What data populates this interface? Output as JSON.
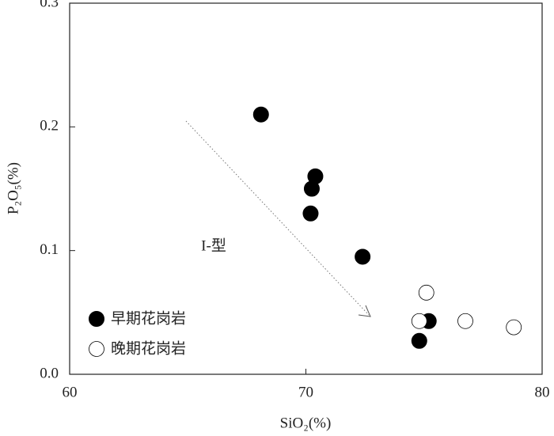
{
  "chart_data": {
    "type": "scatter",
    "x_label": "SiO₂(%)",
    "y_label": "P₂O₅(%)",
    "annotation": "I-型",
    "xlim": [
      60,
      80
    ],
    "xticks": [
      60,
      70,
      80
    ],
    "ylim": [
      0,
      0.3
    ],
    "yticks": [
      {
        "value": 0,
        "label": "0.0"
      },
      0.1,
      0.2,
      0.3
    ],
    "legend": "lower left",
    "series": [
      {
        "name": "早期花岗岩",
        "color": "#000000",
        "filled": true,
        "x": [
          68.1,
          70.4,
          70.25,
          70.2,
          72.4,
          75.2,
          74.8
        ],
        "values": [
          0.21,
          0.16,
          0.15,
          0.13,
          0.095,
          0.043,
          0.027
        ]
      },
      {
        "name": "晚期花岗岩",
        "color": "#000000",
        "filled": false,
        "x": [
          75.1,
          74.8,
          76.75,
          78.8
        ],
        "values": [
          0.066,
          0.043,
          0.043,
          0.038
        ]
      }
    ]
  }
}
